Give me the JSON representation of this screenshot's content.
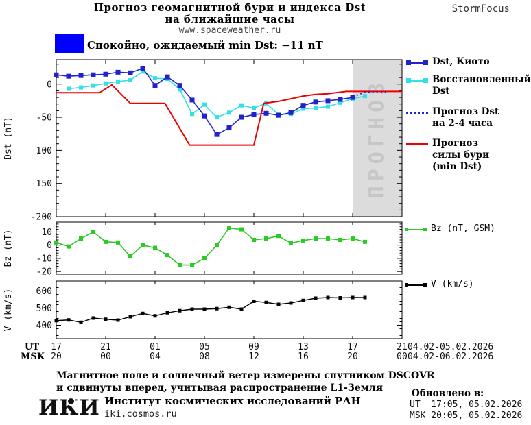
{
  "header": {
    "title_line1": "Прогноз геомагнитной бури и индекса Dst",
    "title_line2": "на ближайшие часы",
    "site_url": "www.spaceweather.ru",
    "brand": "StormFocus"
  },
  "status": {
    "box_color": "#0000ff",
    "label": "Спокойно, ожидаемый min Dst: −11 nT"
  },
  "legend": {
    "entries": [
      {
        "id": "dst-kyoto",
        "label": "Dst, Киото",
        "color": "#2222cc",
        "style": "line-squares"
      },
      {
        "id": "restored-dst",
        "label": "Восстановленный\nDst",
        "color": "#33e0e8",
        "style": "line-squares"
      },
      {
        "id": "forecast-dst",
        "label": "Прогноз Dst\nна 2-4 часа",
        "color": "#2222cc",
        "style": "dotted"
      },
      {
        "id": "storm-forecast",
        "label": "Прогноз\nсилы бури\n(min Dst)",
        "color": "#ee0000",
        "style": "line"
      },
      {
        "id": "bz",
        "label": "Bz (nT, GSM)",
        "color": "#2dc926",
        "style": "line-squares"
      },
      {
        "id": "v",
        "label": "V (km/s)",
        "color": "#000000",
        "style": "line-squares"
      }
    ]
  },
  "chart_data": [
    {
      "type": "line",
      "panel": "dst",
      "ylabel": "Dst (nT)",
      "ylim": [
        -200,
        37
      ],
      "yticks": [
        0,
        -50,
        -100,
        -150,
        -200
      ],
      "minor_step": 10,
      "forecast_region": {
        "start_hour": 24,
        "end_hour": 28,
        "label": "ПРОГНОЗ",
        "fill": "#dcdcdc",
        "text_color": "#c6c6c6"
      },
      "series": [
        {
          "id": "restored-dst",
          "name": "Восстановленный Dst",
          "color": "#33e0e8",
          "width": 1.6,
          "marker": 6,
          "start_hour": 1,
          "values": [
            -7,
            -5,
            -2,
            1,
            4,
            6,
            19,
            9,
            8,
            -8,
            -45,
            -31,
            -50,
            -43,
            -32,
            -36,
            -29,
            -46,
            -45,
            -37,
            -36,
            -34,
            -28,
            -22,
            -18
          ]
        },
        {
          "id": "dst-kyoto",
          "name": "Dst, Киото",
          "color": "#2222cc",
          "width": 1.6,
          "marker": 7,
          "start_hour": 0,
          "values": [
            14,
            12,
            13,
            14,
            15,
            18,
            17,
            24,
            -2,
            11,
            -2,
            -24,
            -48,
            -76,
            -66,
            -50,
            -46,
            -44,
            -47,
            -43,
            -32,
            -27,
            -25,
            -23,
            -20
          ]
        },
        {
          "id": "storm-forecast",
          "name": "Прогноз силы бури (min Dst)",
          "color": "#ee0000",
          "width": 2,
          "points": [
            [
              0,
              -13
            ],
            [
              3.5,
              -13
            ],
            [
              4.5,
              -1
            ],
            [
              6,
              -29
            ],
            [
              8.8,
              -29
            ],
            [
              10.8,
              -92
            ],
            [
              16,
              -92
            ],
            [
              16.8,
              -29
            ],
            [
              18,
              -26
            ],
            [
              19,
              -22
            ],
            [
              20,
              -18
            ],
            [
              21,
              -15.5
            ],
            [
              22,
              -14.5
            ],
            [
              23.5,
              -11
            ],
            [
              28,
              -11
            ]
          ]
        },
        {
          "id": "forecast-dst",
          "name": "Прогноз Dst на 2-4 часа",
          "color": "#2222cc",
          "width": 2.2,
          "dash": "2 4",
          "points": [
            [
              24,
              -19
            ],
            [
              25,
              -12
            ],
            [
              26.9,
              -12
            ]
          ]
        }
      ]
    },
    {
      "type": "line",
      "panel": "bz",
      "ylabel": "Bz (nT)",
      "legend_label": "Bz (nT, GSM)",
      "ylim": [
        -22,
        17.5
      ],
      "yticks": [
        10,
        0,
        -10,
        -20
      ],
      "minor_step": 2,
      "series": [
        {
          "id": "bz",
          "name": "Bz (nT, GSM)",
          "color": "#2dc926",
          "width": 1.6,
          "marker": 6,
          "start_hour": 0,
          "values": [
            2,
            -1,
            5,
            10,
            2.5,
            2,
            -8.5,
            0,
            -2,
            -7.5,
            -15,
            -15,
            -10,
            0,
            13,
            12,
            4,
            5,
            7,
            1.5,
            3.5,
            5,
            5,
            4,
            5,
            2.5
          ]
        }
      ]
    },
    {
      "type": "line",
      "panel": "v",
      "ylabel": "V (km/s)",
      "legend_label": "V (km/s)",
      "ylim": [
        322,
        658
      ],
      "yticks": [
        400,
        500,
        600
      ],
      "minor_step": 20,
      "series": [
        {
          "id": "v",
          "name": "V (km/s)",
          "color": "#000000",
          "width": 1.4,
          "marker": 5,
          "start_hour": 0,
          "values": [
            427,
            431,
            417,
            442,
            435,
            430,
            450,
            469,
            455,
            473,
            485,
            494,
            494,
            497,
            505,
            494,
            540,
            533,
            522,
            530,
            545,
            558,
            562,
            560,
            562,
            562
          ]
        }
      ]
    }
  ],
  "xaxis": {
    "tick_hours": [
      0,
      4,
      8,
      12,
      16,
      20,
      24,
      28
    ],
    "ut": {
      "label": "UT",
      "ticks": [
        "17",
        "21",
        "01",
        "05",
        "09",
        "13",
        "17",
        "21"
      ],
      "dates": "04.02-05.02.2026"
    },
    "msk": {
      "label": "MSK",
      "ticks": [
        "20",
        "00",
        "04",
        "08",
        "12",
        "16",
        "20",
        "00"
      ],
      "dates": "04.02-06.02.2026"
    }
  },
  "footer": {
    "note_line1": "Магнитное поле и солнечный ветер измерены спутником DSCOVR",
    "note_line2": "и сдвинуты вперед, учитывая распространение L1-Земля",
    "logo_text": "ИКИ",
    "institute": "Институт космических исследований РАН",
    "institute_url": "iki.cosmos.ru",
    "updated_title": "Обновлено в:",
    "updated_ut": "UT  17:05, 05.02.2026",
    "updated_msk": "MSK 20:05, 05.02.2026"
  }
}
